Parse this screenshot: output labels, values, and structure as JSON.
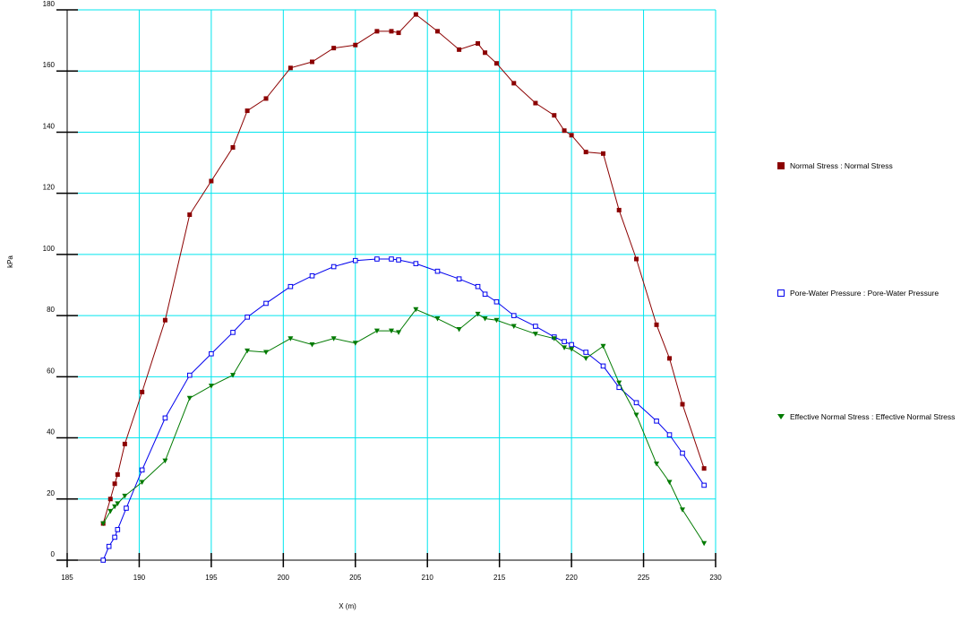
{
  "chart_data": {
    "type": "line",
    "xlabel": "X (m)",
    "ylabel": "kPa",
    "xlim": [
      185,
      230
    ],
    "ylim": [
      0,
      180
    ],
    "x_ticks": [
      "185",
      "190",
      "195",
      "200",
      "205",
      "210",
      "215",
      "220",
      "225",
      "230"
    ],
    "y_ticks": [
      "0",
      "20",
      "40",
      "60",
      "80",
      "100",
      "120",
      "140",
      "160",
      "180"
    ],
    "grid": true,
    "legend_position": "right",
    "series": [
      {
        "name": "Normal Stress : Normal Stress",
        "color": "#8b0000",
        "marker": "filled-square",
        "points": [
          [
            187.5,
            12
          ],
          [
            188.0,
            20
          ],
          [
            188.3,
            25
          ],
          [
            188.5,
            28
          ],
          [
            189.0,
            38
          ],
          [
            190.2,
            55
          ],
          [
            191.8,
            78.5
          ],
          [
            193.5,
            113
          ],
          [
            195.0,
            124
          ],
          [
            196.5,
            135
          ],
          [
            197.5,
            147
          ],
          [
            198.8,
            151
          ],
          [
            200.5,
            161
          ],
          [
            202.0,
            163
          ],
          [
            203.5,
            167.5
          ],
          [
            205.0,
            168.5
          ],
          [
            206.5,
            173
          ],
          [
            207.5,
            173
          ],
          [
            208.0,
            172.5
          ],
          [
            209.2,
            178.5
          ],
          [
            210.7,
            173
          ],
          [
            212.2,
            167
          ],
          [
            213.5,
            169
          ],
          [
            214.0,
            166
          ],
          [
            214.8,
            162.5
          ],
          [
            216.0,
            156
          ],
          [
            217.5,
            149.5
          ],
          [
            218.8,
            145.5
          ],
          [
            219.5,
            140.5
          ],
          [
            220.0,
            139
          ],
          [
            221.0,
            133.5
          ],
          [
            222.2,
            133
          ],
          [
            223.3,
            114.5
          ],
          [
            224.5,
            98.5
          ],
          [
            225.9,
            77
          ],
          [
            226.8,
            66
          ],
          [
            227.7,
            51
          ],
          [
            229.2,
            30
          ]
        ]
      },
      {
        "name": "Pore-Water Pressure : Pore-Water Pressure",
        "color": "#0000ee",
        "marker": "open-square",
        "points": [
          [
            187.5,
            0
          ],
          [
            187.9,
            4.5
          ],
          [
            188.3,
            7.5
          ],
          [
            188.5,
            10
          ],
          [
            189.1,
            17
          ],
          [
            190.2,
            29.5
          ],
          [
            191.8,
            46.5
          ],
          [
            193.5,
            60.5
          ],
          [
            195.0,
            67.5
          ],
          [
            196.5,
            74.5
          ],
          [
            197.5,
            79.5
          ],
          [
            198.8,
            84
          ],
          [
            200.5,
            89.5
          ],
          [
            202.0,
            93
          ],
          [
            203.5,
            96
          ],
          [
            205.0,
            98
          ],
          [
            206.5,
            98.5
          ],
          [
            207.5,
            98.5
          ],
          [
            208.0,
            98.2
          ],
          [
            209.2,
            97
          ],
          [
            210.7,
            94.5
          ],
          [
            212.2,
            92
          ],
          [
            213.5,
            89.5
          ],
          [
            214.0,
            87
          ],
          [
            214.8,
            84.5
          ],
          [
            216.0,
            80
          ],
          [
            217.5,
            76.5
          ],
          [
            218.8,
            73
          ],
          [
            219.5,
            71.5
          ],
          [
            220.0,
            70.5
          ],
          [
            221.0,
            68
          ],
          [
            222.2,
            63.5
          ],
          [
            223.3,
            56.5
          ],
          [
            224.5,
            51.5
          ],
          [
            225.9,
            45.5
          ],
          [
            226.8,
            41
          ],
          [
            227.7,
            35
          ],
          [
            229.2,
            24.5
          ]
        ]
      },
      {
        "name": "Effective Normal Stress : Effective Normal Stress",
        "color": "#007a00",
        "marker": "filled-triangle-down",
        "points": [
          [
            187.5,
            12
          ],
          [
            188.0,
            16
          ],
          [
            188.3,
            17.5
          ],
          [
            188.5,
            18.5
          ],
          [
            189.0,
            21
          ],
          [
            190.2,
            25.5
          ],
          [
            191.8,
            32.5
          ],
          [
            193.5,
            53
          ],
          [
            195.0,
            57
          ],
          [
            196.5,
            60.5
          ],
          [
            197.5,
            68.5
          ],
          [
            198.8,
            68
          ],
          [
            200.5,
            72.5
          ],
          [
            202.0,
            70.5
          ],
          [
            203.5,
            72.5
          ],
          [
            205.0,
            71
          ],
          [
            206.5,
            75
          ],
          [
            207.5,
            75
          ],
          [
            208.0,
            74.5
          ],
          [
            209.2,
            82
          ],
          [
            210.7,
            79
          ],
          [
            212.2,
            75.5
          ],
          [
            213.5,
            80.5
          ],
          [
            214.0,
            79
          ],
          [
            214.8,
            78.5
          ],
          [
            216.0,
            76.5
          ],
          [
            217.5,
            74
          ],
          [
            218.8,
            72.5
          ],
          [
            219.5,
            69.5
          ],
          [
            220.0,
            69
          ],
          [
            221.0,
            66
          ],
          [
            222.2,
            70
          ],
          [
            223.3,
            58
          ],
          [
            224.5,
            47.5
          ],
          [
            225.9,
            31.5
          ],
          [
            226.8,
            25.5
          ],
          [
            227.7,
            16.5
          ],
          [
            229.2,
            5.5
          ]
        ]
      }
    ]
  }
}
